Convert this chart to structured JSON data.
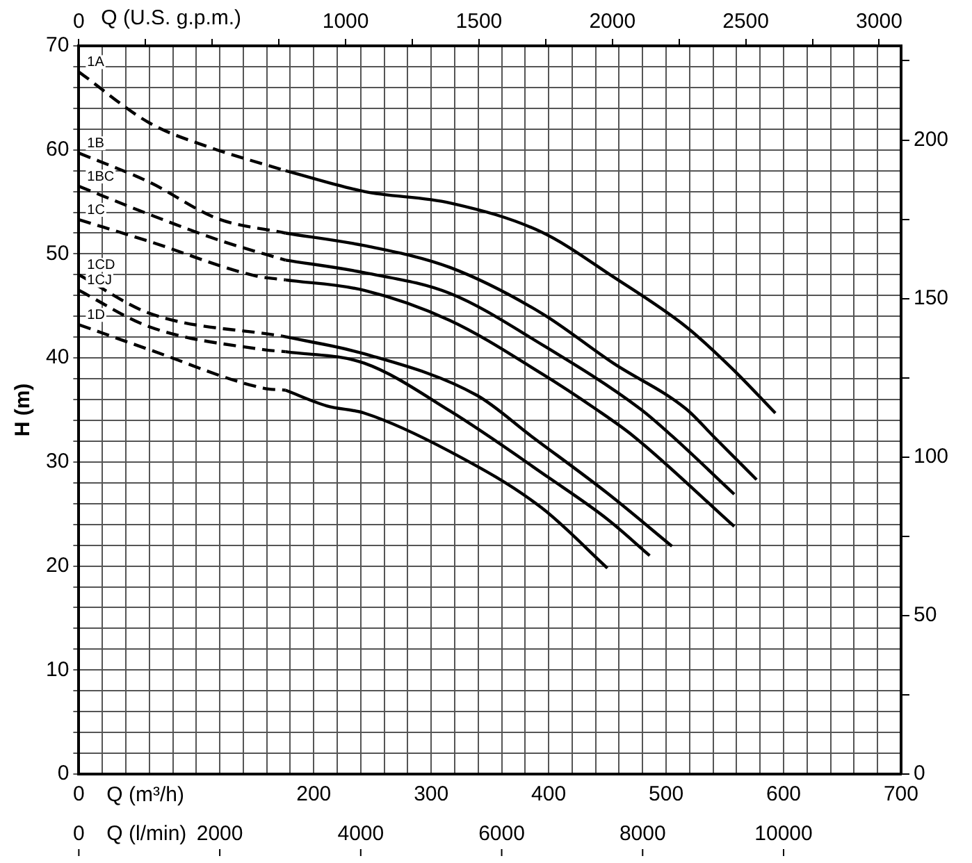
{
  "chart_data": {
    "type": "line",
    "xlabel": "Q (m³/h)",
    "x2label": "Q (U.S. g.p.m.)",
    "ylabel": "H (m)",
    "annotations": [
      "Q (l/min)",
      "0",
      "2000",
      "4000",
      "6000",
      "8000",
      "10000"
    ],
    "xlim": [
      0,
      700
    ],
    "xticks": [
      0,
      {
        "value": 20,
        "label": null
      },
      {
        "value": 40,
        "label": null
      },
      {
        "value": 60,
        "label": null
      },
      {
        "value": 80,
        "label": null
      },
      {
        "value": 100,
        "label": null
      },
      {
        "value": 120,
        "label": null
      },
      {
        "value": 140,
        "label": null
      },
      {
        "value": 160,
        "label": null
      },
      {
        "value": 180,
        "label": null
      },
      200,
      {
        "value": 220,
        "label": null
      },
      {
        "value": 240,
        "label": null
      },
      {
        "value": 260,
        "label": null
      },
      {
        "value": 280,
        "label": null
      },
      300,
      {
        "value": 320,
        "label": null
      },
      {
        "value": 340,
        "label": null
      },
      {
        "value": 360,
        "label": null
      },
      {
        "value": 380,
        "label": null
      },
      400,
      {
        "value": 420,
        "label": null
      },
      {
        "value": 440,
        "label": null
      },
      {
        "value": 460,
        "label": null
      },
      {
        "value": 480,
        "label": null
      },
      500,
      {
        "value": 520,
        "label": null
      },
      {
        "value": 540,
        "label": null
      },
      {
        "value": 560,
        "label": null
      },
      {
        "value": 580,
        "label": null
      },
      600,
      {
        "value": 620,
        "label": null
      },
      {
        "value": 640,
        "label": null
      },
      {
        "value": 660,
        "label": null
      },
      {
        "value": 680,
        "label": null
      },
      700
    ],
    "x2lim": [
      0,
      3082
    ],
    "x2ticks": [
      0,
      {
        "value": 250,
        "label": null
      },
      {
        "value": 500,
        "label": null
      },
      {
        "value": 750,
        "label": null
      },
      1000,
      {
        "value": 1250,
        "label": null
      },
      1500,
      {
        "value": 1750,
        "label": null
      },
      2000,
      {
        "value": 2250,
        "label": null
      },
      2500,
      {
        "value": 2750,
        "label": null
      },
      3000
    ],
    "ylim": [
      0,
      70
    ],
    "yticks": [
      0,
      {
        "value": 2,
        "label": null
      },
      {
        "value": 4,
        "label": null
      },
      {
        "value": 6,
        "label": null
      },
      {
        "value": 8,
        "label": null
      },
      10,
      {
        "value": 12,
        "label": null
      },
      {
        "value": 14,
        "label": null
      },
      {
        "value": 16,
        "label": null
      },
      {
        "value": 18,
        "label": null
      },
      20,
      {
        "value": 22,
        "label": null
      },
      {
        "value": 24,
        "label": null
      },
      {
        "value": 26,
        "label": null
      },
      {
        "value": 28,
        "label": null
      },
      30,
      {
        "value": 32,
        "label": null
      },
      {
        "value": 34,
        "label": null
      },
      {
        "value": 36,
        "label": null
      },
      {
        "value": 38,
        "label": null
      },
      40,
      {
        "value": 42,
        "label": null
      },
      {
        "value": 44,
        "label": null
      },
      {
        "value": 46,
        "label": null
      },
      {
        "value": 48,
        "label": null
      },
      50,
      {
        "value": 52,
        "label": null
      },
      {
        "value": 54,
        "label": null
      },
      {
        "value": 56,
        "label": null
      },
      {
        "value": 58,
        "label": null
      },
      60,
      {
        "value": 62,
        "label": null
      },
      {
        "value": 64,
        "label": null
      },
      {
        "value": 66,
        "label": null
      },
      {
        "value": 68,
        "label": null
      },
      70
    ],
    "y2lim": [
      0,
      229.7
    ],
    "y2ticks": [
      0,
      {
        "value": 25,
        "label": null
      },
      50,
      {
        "value": 75,
        "label": null
      },
      100,
      {
        "value": 125,
        "label": null
      },
      150,
      {
        "value": 175,
        "label": null
      },
      200,
      {
        "value": 225,
        "label": null
      }
    ],
    "grid": true,
    "legend": false,
    "marker": "none",
    "series": [
      {
        "name": "1A",
        "color": "#000000",
        "line_style": "dashed",
        "x": [
          0,
          60,
          110,
          176
        ],
        "values": [
          67.5,
          62.6,
          60.3,
          58.0
        ]
      },
      {
        "color": "#000000",
        "line_style": "solid",
        "x": [
          176,
          243,
          316,
          394,
          455,
          517,
          556,
          593
        ],
        "values": [
          58.0,
          56.0,
          54.9,
          52.1,
          47.8,
          43.0,
          39.0,
          34.7
        ]
      },
      {
        "name": "1B",
        "color": "#000000",
        "line_style": "dashed",
        "x": [
          0,
          60,
          118,
          176
        ],
        "values": [
          59.7,
          56.9,
          53.4,
          52.0
        ]
      },
      {
        "color": "#000000",
        "line_style": "solid",
        "x": [
          176,
          243,
          316,
          394,
          455,
          517,
          540,
          577
        ],
        "values": [
          52.0,
          50.8,
          48.7,
          44.3,
          39.5,
          35.1,
          32.5,
          28.3
        ]
      },
      {
        "name": "1BC",
        "color": "#000000",
        "line_style": "dashed",
        "x": [
          0,
          60,
          120,
          176
        ],
        "values": [
          56.5,
          53.8,
          51.3,
          49.4
        ]
      },
      {
        "color": "#000000",
        "line_style": "solid",
        "x": [
          176,
          243,
          316,
          394,
          478,
          505,
          558
        ],
        "values": [
          49.4,
          48.2,
          46.2,
          41.3,
          35.1,
          32.5,
          26.9
        ]
      },
      {
        "name": "1C",
        "color": "#000000",
        "line_style": "dashed",
        "x": [
          0,
          60,
          150,
          176
        ],
        "values": [
          53.3,
          51.2,
          47.9,
          47.5
        ]
      },
      {
        "color": "#000000",
        "line_style": "solid",
        "x": [
          176,
          243,
          316,
          394,
          440,
          472,
          558
        ],
        "values": [
          47.5,
          46.5,
          43.6,
          38.5,
          35.1,
          32.5,
          23.8
        ]
      },
      {
        "name": "1CD",
        "color": "#000000",
        "line_style": "dashed",
        "x": [
          0,
          60,
          173
        ],
        "values": [
          48.0,
          44.3,
          42.1
        ]
      },
      {
        "color": "#000000",
        "line_style": "solid",
        "x": [
          173,
          243,
          339,
          385,
          450,
          505
        ],
        "values": [
          42.1,
          40.4,
          36.4,
          32.5,
          27.0,
          21.9
        ]
      },
      {
        "name": "1CJ",
        "color": "#000000",
        "line_style": "dashed",
        "x": [
          0,
          60,
          157,
          176
        ],
        "values": [
          46.5,
          43.0,
          40.8,
          40.6
        ]
      },
      {
        "color": "#000000",
        "line_style": "solid",
        "x": [
          176,
          243,
          316,
          400,
          450,
          486
        ],
        "values": [
          40.6,
          39.5,
          34.9,
          28.5,
          24.5,
          21.0
        ]
      },
      {
        "name": "1D",
        "color": "#000000",
        "line_style": "dashed",
        "x": [
          0,
          60,
          157,
          176
        ],
        "values": [
          43.2,
          40.8,
          37.1,
          36.9
        ]
      },
      {
        "color": "#000000",
        "line_style": "solid",
        "x": [
          176,
          211,
          243,
          316,
          394,
          450
        ],
        "values": [
          36.9,
          35.4,
          34.7,
          31.0,
          25.6,
          19.8
        ]
      }
    ]
  }
}
